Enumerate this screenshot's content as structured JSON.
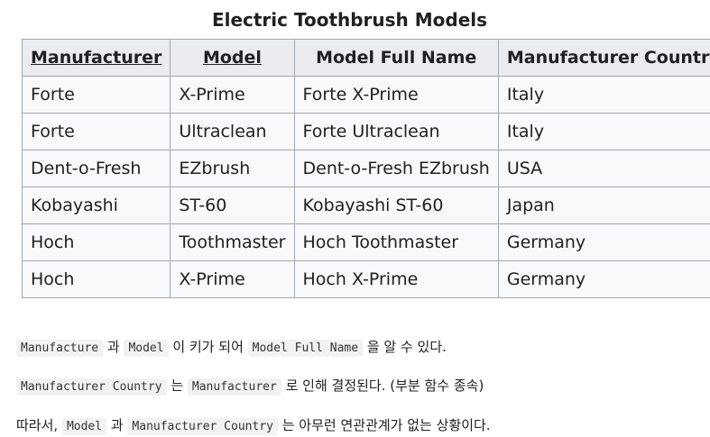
{
  "table": {
    "caption": "Electric Toothbrush Models",
    "headers": [
      "Manufacturer",
      "Model",
      "Model Full Name",
      "Manufacturer Country"
    ],
    "rows": [
      [
        "Forte",
        "X-Prime",
        "Forte X-Prime",
        "Italy"
      ],
      [
        "Forte",
        "Ultraclean",
        "Forte Ultraclean",
        "Italy"
      ],
      [
        "Dent-o-Fresh",
        "EZbrush",
        "Dent-o-Fresh EZbrush",
        "USA"
      ],
      [
        "Kobayashi",
        "ST-60",
        "Kobayashi ST-60",
        "Japan"
      ],
      [
        "Hoch",
        "Toothmaster",
        "Hoch Toothmaster",
        "Germany"
      ],
      [
        "Hoch",
        "X-Prime",
        "Hoch X-Prime",
        "Germany"
      ]
    ]
  },
  "paragraphs": {
    "p1": {
      "code1": "Manufacture",
      "text1": " 과 ",
      "code2": "Model",
      "text2": " 이 키가 되어 ",
      "code3": "Model Full Name",
      "text3": " 을 알 수 있다."
    },
    "p2": {
      "code1": "Manufacturer Country",
      "text1": " 는 ",
      "code2": "Manufacturer",
      "text2": " 로 인해 결정된다. (부분 함수 종속)"
    },
    "p3": {
      "text0": "따라서, ",
      "code1": "Model",
      "text1": " 과 ",
      "code2": "Manufacturer Country",
      "text2": " 는 아무런 연관관계가 없는 상황이다."
    }
  }
}
